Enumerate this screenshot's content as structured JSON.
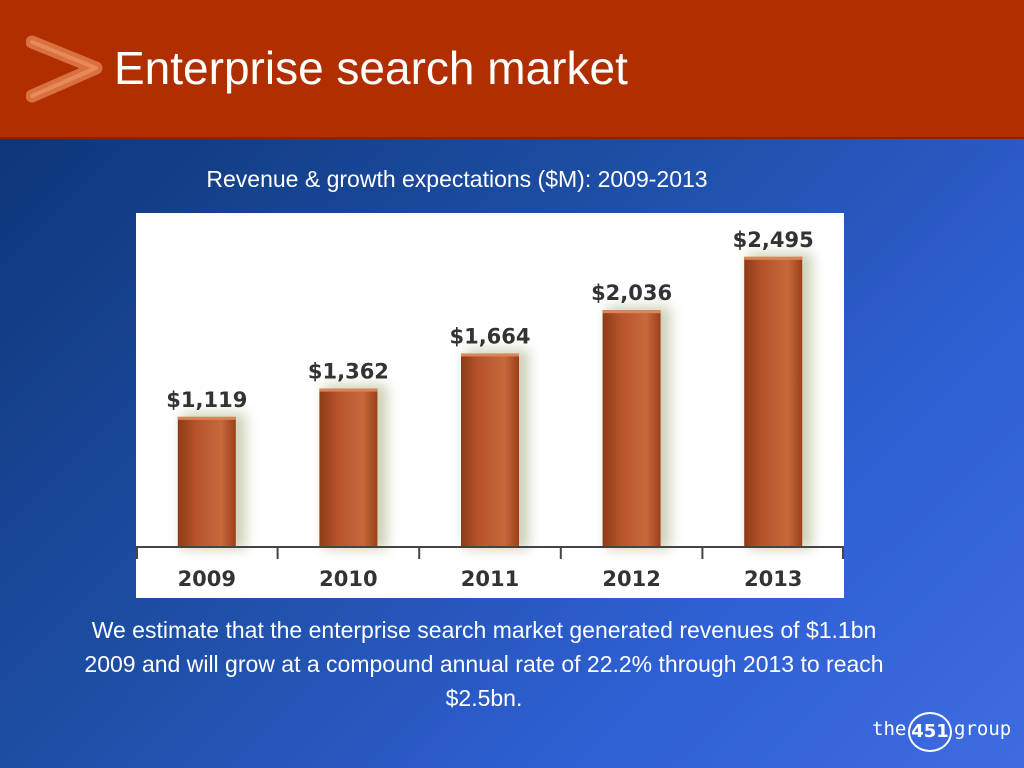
{
  "header": {
    "title": "Enterprise search market",
    "brand_color": "#b02e00",
    "icon": "chevron-right-icon"
  },
  "subtitle": "Revenue & growth expectations ($M): 2009-2013",
  "caption": "We estimate that the enterprise search market generated revenues of $1.1bn 2009 and will grow at a compound annual rate of 22.2% through 2013 to reach $2.5bn.",
  "logo": {
    "the": "the",
    "number": "451",
    "group": "group"
  },
  "chart_data": {
    "type": "bar",
    "categories": [
      "2009",
      "2010",
      "2011",
      "2012",
      "2013"
    ],
    "values": [
      1119,
      1362,
      1664,
      2036,
      2495
    ],
    "data_labels": [
      "$1,119",
      "$1,362",
      "$1,664",
      "$2,036",
      "$2,495"
    ],
    "ylim": [
      0,
      2700
    ],
    "grid": false,
    "bar_color": "#b5532a",
    "title": "",
    "xlabel": "",
    "ylabel": ""
  }
}
